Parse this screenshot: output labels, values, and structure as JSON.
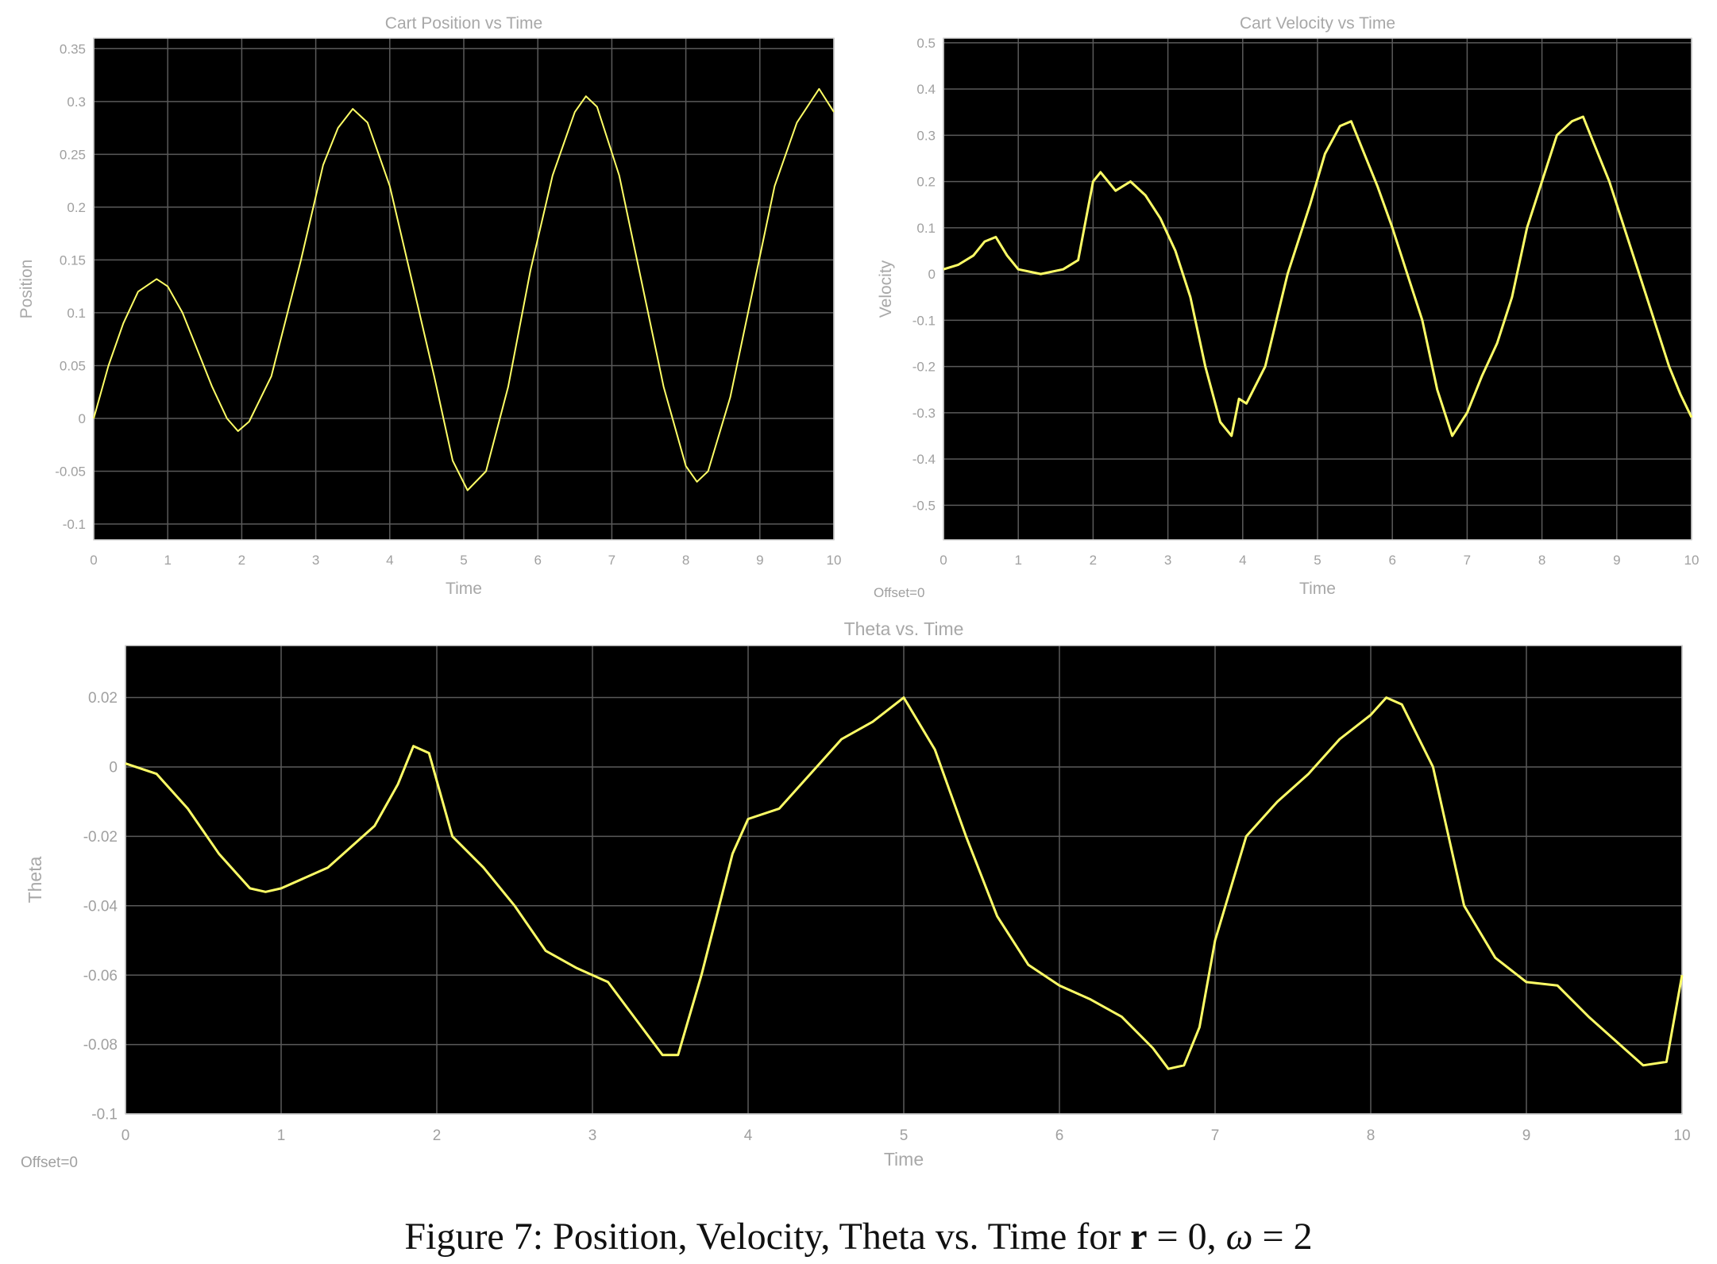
{
  "chart_data": [
    {
      "type": "line",
      "title": "Cart Position vs Time",
      "xlabel": "Time",
      "ylabel": "Position",
      "xlim": [
        0,
        10
      ],
      "ylim": [
        -0.115,
        0.36
      ],
      "xticks": [
        "0",
        "1",
        "2",
        "3",
        "4",
        "5",
        "6",
        "7",
        "8",
        "9",
        "10"
      ],
      "yticks": [
        "-0.1",
        "-0.05",
        "0",
        "0.05",
        "0.1",
        "0.15",
        "0.2",
        "0.25",
        "0.3",
        "0.35"
      ],
      "grid": true,
      "background": "#000000",
      "line_color": "#ffff66",
      "series": [
        {
          "x": [
            0,
            0.2,
            0.4,
            0.6,
            0.85,
            1.0,
            1.2,
            1.4,
            1.6,
            1.8,
            1.95,
            2.1,
            2.4,
            2.8,
            3.1,
            3.3,
            3.5,
            3.7,
            4.0,
            4.3,
            4.6,
            4.85,
            5.05,
            5.3,
            5.6,
            5.9,
            6.2,
            6.5,
            6.65,
            6.8,
            7.1,
            7.4,
            7.7,
            8.0,
            8.15,
            8.3,
            8.6,
            8.9,
            9.2,
            9.5,
            9.8,
            10.0
          ],
          "y": [
            0,
            0.05,
            0.09,
            0.12,
            0.132,
            0.125,
            0.1,
            0.065,
            0.03,
            0.0,
            -0.012,
            -0.003,
            0.04,
            0.15,
            0.24,
            0.275,
            0.293,
            0.28,
            0.22,
            0.13,
            0.04,
            -0.04,
            -0.068,
            -0.05,
            0.03,
            0.14,
            0.23,
            0.29,
            0.305,
            0.295,
            0.23,
            0.13,
            0.03,
            -0.045,
            -0.06,
            -0.05,
            0.02,
            0.12,
            0.22,
            0.28,
            0.312,
            0.29
          ]
        }
      ],
      "footnote": ""
    },
    {
      "type": "line",
      "title": "Cart Velocity vs Time",
      "xlabel": "Time",
      "ylabel": "Velocity",
      "xlim": [
        0,
        10
      ],
      "ylim": [
        -0.575,
        0.51
      ],
      "xticks": [
        "0",
        "1",
        "2",
        "3",
        "4",
        "5",
        "6",
        "7",
        "8",
        "9",
        "10"
      ],
      "yticks": [
        "-0.5",
        "-0.4",
        "-0.3",
        "-0.2",
        "-0.1",
        "0",
        "0.1",
        "0.2",
        "0.3",
        "0.4",
        "0.5"
      ],
      "grid": true,
      "background": "#000000",
      "line_color": "#ffff66",
      "series": [
        {
          "x": [
            0,
            0.2,
            0.4,
            0.55,
            0.7,
            0.85,
            1.0,
            1.3,
            1.6,
            1.8,
            2.0,
            2.1,
            2.3,
            2.5,
            2.7,
            2.9,
            3.1,
            3.3,
            3.5,
            3.7,
            3.85,
            3.95,
            4.05,
            4.3,
            4.6,
            4.9,
            5.1,
            5.3,
            5.45,
            5.6,
            5.8,
            6.0,
            6.2,
            6.4,
            6.6,
            6.8,
            7.0,
            7.2,
            7.4,
            7.6,
            7.8,
            8.0,
            8.2,
            8.4,
            8.55,
            8.7,
            8.9,
            9.1,
            9.3,
            9.5,
            9.7,
            9.85,
            10.0
          ],
          "y": [
            0.01,
            0.02,
            0.04,
            0.07,
            0.08,
            0.04,
            0.01,
            0.0,
            0.01,
            0.03,
            0.2,
            0.22,
            0.18,
            0.2,
            0.17,
            0.12,
            0.05,
            -0.05,
            -0.2,
            -0.32,
            -0.35,
            -0.27,
            -0.28,
            -0.2,
            0.0,
            0.15,
            0.26,
            0.32,
            0.33,
            0.27,
            0.19,
            0.1,
            0.0,
            -0.1,
            -0.25,
            -0.35,
            -0.3,
            -0.22,
            -0.15,
            -0.05,
            0.1,
            0.2,
            0.3,
            0.33,
            0.34,
            0.28,
            0.2,
            0.1,
            0.0,
            -0.1,
            -0.2,
            -0.26,
            -0.31
          ]
        }
      ],
      "footnote": "Offset=0"
    },
    {
      "type": "line",
      "title": "Theta vs. Time",
      "xlabel": "Time",
      "ylabel": "Theta",
      "xlim": [
        0,
        10
      ],
      "ylim": [
        -0.1,
        0.035
      ],
      "xticks": [
        "0",
        "1",
        "2",
        "3",
        "4",
        "5",
        "6",
        "7",
        "8",
        "9",
        "10"
      ],
      "yticks": [
        "-0.1",
        "-0.08",
        "-0.06",
        "-0.04",
        "-0.02",
        "0",
        "0.02"
      ],
      "grid": true,
      "background": "#000000",
      "line_color": "#ffff66",
      "series": [
        {
          "x": [
            0,
            0.2,
            0.4,
            0.6,
            0.8,
            0.9,
            1.0,
            1.3,
            1.6,
            1.75,
            1.85,
            1.95,
            2.1,
            2.3,
            2.5,
            2.7,
            2.9,
            3.1,
            3.3,
            3.45,
            3.55,
            3.7,
            3.9,
            4.0,
            4.2,
            4.4,
            4.6,
            4.8,
            5.0,
            5.2,
            5.4,
            5.6,
            5.8,
            6.0,
            6.2,
            6.4,
            6.6,
            6.7,
            6.8,
            6.9,
            7.0,
            7.2,
            7.4,
            7.6,
            7.8,
            8.0,
            8.1,
            8.2,
            8.4,
            8.6,
            8.8,
            9.0,
            9.2,
            9.4,
            9.6,
            9.75,
            9.9,
            10.0
          ],
          "y": [
            0.001,
            -0.002,
            -0.012,
            -0.025,
            -0.035,
            -0.036,
            -0.035,
            -0.029,
            -0.017,
            -0.005,
            0.006,
            0.004,
            -0.02,
            -0.029,
            -0.04,
            -0.053,
            -0.058,
            -0.062,
            -0.074,
            -0.083,
            -0.083,
            -0.06,
            -0.025,
            -0.015,
            -0.012,
            -0.002,
            0.008,
            0.013,
            0.02,
            0.005,
            -0.02,
            -0.043,
            -0.057,
            -0.063,
            -0.067,
            -0.072,
            -0.081,
            -0.087,
            -0.086,
            -0.075,
            -0.05,
            -0.02,
            -0.01,
            -0.002,
            0.008,
            0.015,
            0.02,
            0.018,
            0.0,
            -0.04,
            -0.055,
            -0.062,
            -0.063,
            -0.072,
            -0.08,
            -0.086,
            -0.085,
            -0.06
          ]
        }
      ],
      "footnote": "Offset=0"
    }
  ],
  "caption": {
    "prefix": "Figure 7: Position, Velocity, Theta vs. Time for ",
    "bold_var": "r",
    "mid": " = 0, ",
    "omega": "ω",
    "suffix": " = 2"
  }
}
